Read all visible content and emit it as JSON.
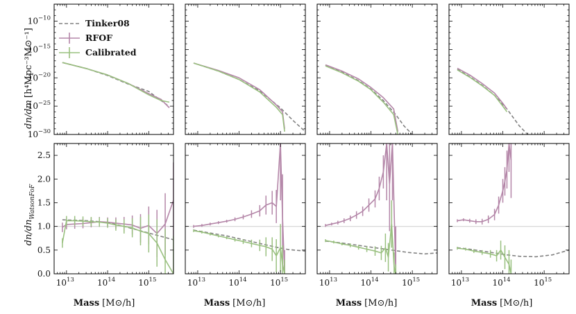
{
  "chart_data": {
    "type": "line",
    "layout": "2x4 grid of panels sharing the mass axis",
    "legend": {
      "placement": "top-left of first panel",
      "entries": [
        {
          "label": "Tinker08",
          "style": "dashed",
          "color": "#808080"
        },
        {
          "label": "RFOF",
          "style": "solid with error bars",
          "color": "#b486a8"
        },
        {
          "label": "Calibrated",
          "style": "solid with error bars",
          "color": "#99c07f"
        }
      ]
    },
    "colors": {
      "tinker": "#808080",
      "rfof": "#b486a8",
      "calibrated": "#99c07f",
      "reference": "#d8d8d8"
    },
    "x_axis": {
      "label_main": "Mass",
      "label_unit": "[M⊙/h]",
      "scale": "log",
      "xlim": [
        5000000000000.0,
        4000000000000000.0
      ],
      "ticks": [
        {
          "value": 10000000000000.0,
          "base": "10",
          "exp": "13"
        },
        {
          "value": 100000000000000.0,
          "base": "10",
          "exp": "14"
        },
        {
          "value": 1000000000000000.0,
          "base": "10",
          "exp": "15"
        }
      ]
    },
    "top_row": {
      "ylabel_prefix": "dn/dm",
      "ylabel_unit": "[h⁴Mpc⁻³M⊙⁻¹]",
      "scale": "log",
      "ylim": [
        1e-30,
        1e-07
      ],
      "ticks": [
        {
          "value": 1e-10,
          "base": "10",
          "exp": "−10"
        },
        {
          "value": 1e-15,
          "base": "10",
          "exp": "−15"
        },
        {
          "value": 1e-20,
          "base": "10",
          "exp": "−20"
        },
        {
          "value": 1e-25,
          "base": "10",
          "exp": "−25"
        },
        {
          "value": 1e-30,
          "base": "10",
          "exp": "−30"
        }
      ]
    },
    "bottom_row": {
      "ylabel_prefix": "dn/dn",
      "ylabel_sub": "WatsonFoF",
      "scale": "linear",
      "ylim": [
        0.0,
        2.75
      ],
      "reference_line": 1.0,
      "ticks": [
        {
          "value": 0.0,
          "label": "0.0"
        },
        {
          "value": 0.5,
          "label": "0.5"
        },
        {
          "value": 1.0,
          "label": "1.0"
        },
        {
          "value": 1.5,
          "label": "1.5"
        },
        {
          "value": 2.0,
          "label": "2.0"
        },
        {
          "value": 2.5,
          "label": "2.5"
        }
      ]
    },
    "panels": [
      {
        "column": 1,
        "top": {
          "tinker": {
            "logm": [
              12.9,
              13.5,
              14.0,
              14.5,
              15.0,
              15.5
            ],
            "log_dndm": [
              -17.3,
              -18.4,
              -19.6,
              -21.1,
              -22.4,
              -25.1
            ]
          },
          "rfof": {
            "logm": [
              12.9,
              13.5,
              14.0,
              14.5,
              15.0,
              15.3,
              15.5
            ],
            "log_dndm": [
              -17.3,
              -18.4,
              -19.5,
              -21.0,
              -22.8,
              -23.8,
              -25.3
            ]
          },
          "calibrated": {
            "logm": [
              12.9,
              13.5,
              14.0,
              14.5,
              15.0,
              15.3,
              15.5
            ],
            "log_dndm": [
              -17.3,
              -18.4,
              -19.5,
              -21.0,
              -23.0,
              -24.0,
              -24.3
            ]
          }
        },
        "bottom": {
          "tinker": {
            "logm": [
              12.9,
              13.2,
              13.5,
              13.8,
              14.1,
              14.4,
              14.7,
              15.0,
              15.3,
              15.6
            ],
            "ratio": [
              1.14,
              1.13,
              1.12,
              1.1,
              1.06,
              1.0,
              0.93,
              0.86,
              0.79,
              0.72
            ]
          },
          "rfof": {
            "logm": [
              12.9,
              13.0,
              13.2,
              13.4,
              13.6,
              13.8,
              14.0,
              14.2,
              14.4,
              14.6,
              14.8,
              15.0,
              15.2,
              15.4,
              15.6
            ],
            "ratio": [
              0.98,
              1.04,
              1.05,
              1.06,
              1.08,
              1.1,
              1.09,
              1.07,
              1.05,
              1.03,
              0.96,
              1.02,
              0.85,
              1.05,
              1.55
            ],
            "err": [
              0.1,
              0.1,
              0.1,
              0.1,
              0.1,
              0.1,
              0.1,
              0.12,
              0.15,
              0.2,
              0.3,
              0.4,
              0.5,
              0.65,
              0.8
            ]
          },
          "calibrated": {
            "logm": [
              12.9,
              13.0,
              13.2,
              13.4,
              13.6,
              13.8,
              14.0,
              14.2,
              14.4,
              14.6,
              14.8,
              15.0,
              15.2,
              15.4,
              15.6
            ],
            "ratio": [
              0.65,
              1.12,
              1.12,
              1.11,
              1.1,
              1.09,
              1.07,
              1.03,
              1.0,
              0.97,
              0.9,
              0.85,
              0.65,
              0.3,
              0.0
            ],
            "err": [
              0.1,
              0.1,
              0.1,
              0.1,
              0.1,
              0.1,
              0.1,
              0.12,
              0.15,
              0.2,
              0.3,
              0.4,
              0.5,
              0.65,
              0.8
            ]
          }
        }
      },
      {
        "column": 2,
        "top": {
          "tinker": {
            "logm": [
              12.9,
              13.5,
              14.0,
              14.5,
              15.0,
              15.3,
              15.6
            ],
            "log_dndm": [
              -17.4,
              -18.8,
              -20.3,
              -22.3,
              -25.3,
              -27.5,
              -29.5
            ]
          },
          "rfof": {
            "logm": [
              12.9,
              13.5,
              14.0,
              14.5,
              14.9,
              15.05,
              15.1
            ],
            "log_dndm": [
              -17.4,
              -18.7,
              -20.0,
              -22.1,
              -24.8,
              -26.0,
              -29.0
            ]
          },
          "calibrated": {
            "logm": [
              12.9,
              13.5,
              14.0,
              14.5,
              14.9,
              15.05,
              15.1
            ],
            "log_dndm": [
              -17.4,
              -18.8,
              -20.3,
              -22.5,
              -25.2,
              -26.5,
              -29.5
            ]
          }
        },
        "bottom": {
          "tinker": {
            "logm": [
              12.9,
              13.3,
              13.7,
              14.1,
              14.5,
              14.9,
              15.2,
              15.6
            ],
            "ratio": [
              0.92,
              0.86,
              0.8,
              0.72,
              0.64,
              0.56,
              0.51,
              0.48
            ]
          },
          "rfof": {
            "logm": [
              12.9,
              13.1,
              13.3,
              13.5,
              13.7,
              13.9,
              14.1,
              14.3,
              14.5,
              14.65,
              14.8,
              14.9,
              15.0,
              15.05,
              15.1
            ],
            "ratio": [
              1.0,
              1.02,
              1.05,
              1.08,
              1.11,
              1.15,
              1.2,
              1.26,
              1.33,
              1.45,
              1.5,
              1.42,
              2.75,
              1.2,
              0.0
            ],
            "err": [
              0.03,
              0.03,
              0.03,
              0.03,
              0.03,
              0.04,
              0.05,
              0.08,
              0.12,
              0.2,
              0.25,
              0.35,
              1.2,
              0.9,
              0.5
            ]
          },
          "calibrated": {
            "logm": [
              12.9,
              13.1,
              13.3,
              13.5,
              13.7,
              13.9,
              14.1,
              14.3,
              14.5,
              14.65,
              14.8,
              14.9,
              15.0,
              15.05,
              15.1
            ],
            "ratio": [
              0.91,
              0.88,
              0.84,
              0.8,
              0.76,
              0.72,
              0.68,
              0.64,
              0.6,
              0.57,
              0.52,
              0.38,
              0.55,
              0.2,
              0.0
            ],
            "err": [
              0.03,
              0.03,
              0.03,
              0.03,
              0.03,
              0.04,
              0.05,
              0.08,
              0.12,
              0.2,
              0.25,
              0.35,
              0.5,
              0.4,
              0.3
            ]
          }
        }
      },
      {
        "column": 3,
        "top": {
          "tinker": {
            "logm": [
              12.9,
              13.3,
              13.7,
              14.0,
              14.3,
              14.6,
              14.8,
              15.0
            ],
            "log_dndm": [
              -17.8,
              -19.0,
              -20.5,
              -22.0,
              -24.0,
              -26.5,
              -28.5,
              -30.0
            ]
          },
          "rfof": {
            "logm": [
              12.9,
              13.3,
              13.7,
              14.0,
              14.3,
              14.55,
              14.65
            ],
            "log_dndm": [
              -17.7,
              -18.8,
              -20.2,
              -21.7,
              -23.5,
              -25.5,
              -29.5
            ]
          },
          "calibrated": {
            "logm": [
              12.9,
              13.3,
              13.7,
              14.0,
              14.3,
              14.55,
              14.65
            ],
            "log_dndm": [
              -17.9,
              -19.1,
              -20.6,
              -22.1,
              -24.3,
              -26.5,
              -30.0
            ]
          }
        },
        "bottom": {
          "tinker": {
            "logm": [
              12.9,
              13.3,
              13.7,
              14.1,
              14.5,
              14.9,
              15.3,
              15.6
            ],
            "ratio": [
              0.69,
              0.65,
              0.6,
              0.55,
              0.5,
              0.45,
              0.42,
              0.44
            ]
          },
          "rfof": {
            "logm": [
              12.9,
              13.05,
              13.2,
              13.35,
              13.5,
              13.65,
              13.8,
              13.95,
              14.1,
              14.2,
              14.3,
              14.38,
              14.45,
              14.52,
              14.6
            ],
            "ratio": [
              1.02,
              1.05,
              1.08,
              1.12,
              1.17,
              1.24,
              1.32,
              1.45,
              1.58,
              1.8,
              2.15,
              2.75,
              1.9,
              2.75,
              0.0
            ],
            "err": [
              0.03,
              0.03,
              0.04,
              0.05,
              0.06,
              0.08,
              0.1,
              0.14,
              0.18,
              0.25,
              0.35,
              1.2,
              1.0,
              1.2,
              1.0
            ]
          },
          "calibrated": {
            "logm": [
              12.9,
              13.1,
              13.3,
              13.5,
              13.7,
              13.9,
              14.1,
              14.25,
              14.35,
              14.42,
              14.5,
              14.56,
              14.6
            ],
            "ratio": [
              0.7,
              0.67,
              0.63,
              0.6,
              0.56,
              0.52,
              0.48,
              0.44,
              0.55,
              0.35,
              1.05,
              0.15,
              0.0
            ],
            "err": [
              0.03,
              0.03,
              0.03,
              0.04,
              0.05,
              0.06,
              0.1,
              0.15,
              0.3,
              0.3,
              0.5,
              0.3,
              0.2
            ]
          }
        }
      },
      {
        "column": 4,
        "top": {
          "tinker": {
            "logm": [
              12.9,
              13.2,
              13.5,
              13.8,
              14.1,
              14.4,
              14.6
            ],
            "log_dndm": [
              -18.5,
              -19.8,
              -21.3,
              -23.1,
              -25.5,
              -28.5,
              -30.0
            ]
          },
          "rfof": {
            "logm": [
              12.9,
              13.2,
              13.5,
              13.8,
              14.0,
              14.1
            ],
            "log_dndm": [
              -18.3,
              -19.5,
              -21.0,
              -22.7,
              -24.5,
              -25.5
            ]
          },
          "calibrated": {
            "logm": [
              12.9,
              13.2,
              13.5,
              13.8,
              14.0,
              14.1
            ],
            "log_dndm": [
              -18.6,
              -19.9,
              -21.4,
              -23.1,
              -25.0,
              -26.0
            ]
          }
        },
        "bottom": {
          "tinker": {
            "logm": [
              12.9,
              13.2,
              13.5,
              13.8,
              14.1,
              14.4,
              14.8,
              15.2,
              15.6
            ],
            "ratio": [
              0.55,
              0.52,
              0.48,
              0.44,
              0.4,
              0.37,
              0.36,
              0.4,
              0.5
            ]
          },
          "rfof": {
            "logm": [
              12.9,
              13.05,
              13.2,
              13.35,
              13.5,
              13.65,
              13.8,
              13.9,
              14.0,
              14.05,
              14.1,
              14.15,
              14.2
            ],
            "ratio": [
              1.12,
              1.14,
              1.12,
              1.1,
              1.1,
              1.15,
              1.25,
              1.45,
              1.75,
              1.95,
              2.2,
              2.75,
              2.4
            ],
            "err": [
              0.03,
              0.03,
              0.04,
              0.05,
              0.06,
              0.08,
              0.12,
              0.18,
              0.25,
              0.3,
              0.4,
              0.6,
              0.8
            ]
          },
          "calibrated": {
            "logm": [
              12.9,
              13.1,
              13.3,
              13.5,
              13.7,
              13.85,
              13.95,
              14.05,
              14.15,
              14.2
            ],
            "ratio": [
              0.54,
              0.52,
              0.48,
              0.45,
              0.42,
              0.38,
              0.5,
              0.35,
              0.2,
              0.0
            ],
            "err": [
              0.03,
              0.03,
              0.04,
              0.05,
              0.08,
              0.12,
              0.2,
              0.25,
              0.3,
              0.3
            ]
          }
        }
      }
    ]
  }
}
